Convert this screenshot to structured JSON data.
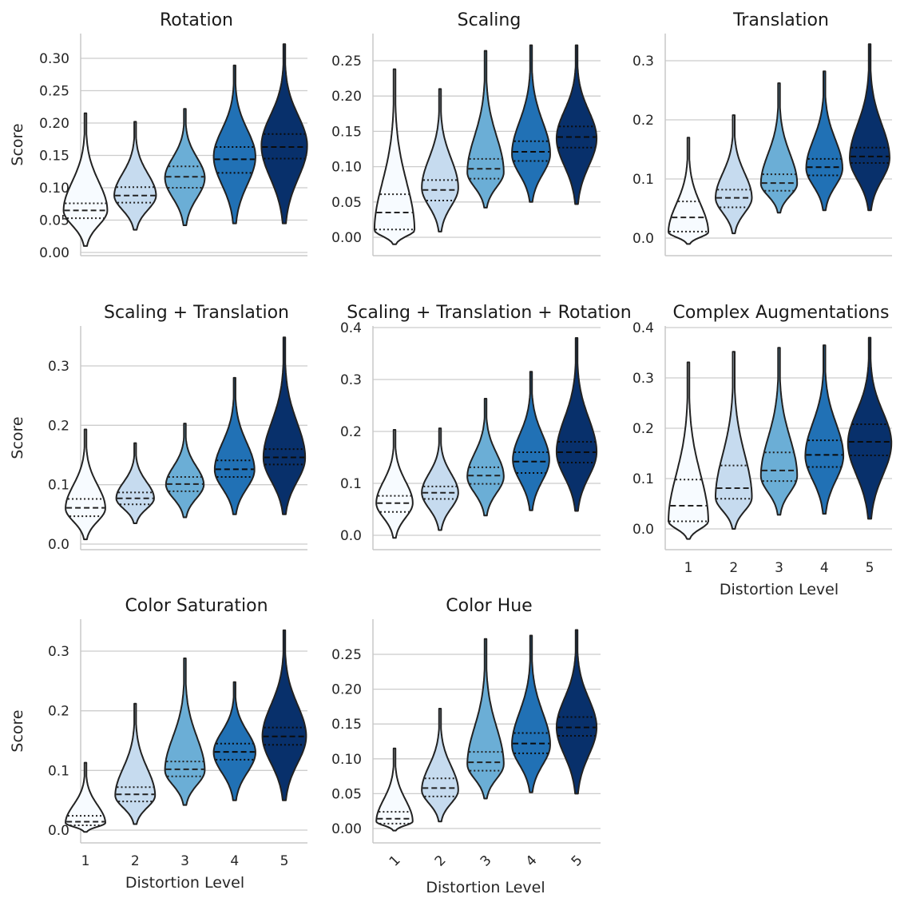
{
  "figure": {
    "palette": [
      "#f7fbff",
      "#c6dbef",
      "#6baed6",
      "#2171b5",
      "#08306b"
    ],
    "grid_color": "#cccccc",
    "outline_color": "#222222"
  },
  "chart_data": [
    {
      "type": "violin",
      "title": "Rotation",
      "ylabel": "Score",
      "xlabel": "",
      "categories": [
        "1",
        "2",
        "3",
        "4",
        "5"
      ],
      "show_xticks": false,
      "ylim": [
        0,
        0.33
      ],
      "yticks": [
        0.0,
        0.05,
        0.1,
        0.15,
        0.2,
        0.25,
        0.3
      ],
      "ytick_labels": [
        "0.00",
        "0.05",
        "0.10",
        "0.15",
        "0.20",
        "0.25",
        "0.30"
      ],
      "violins": [
        {
          "min": 0.01,
          "q1": 0.053,
          "median": 0.065,
          "q3": 0.076,
          "max": 0.215,
          "mode": 0.065,
          "maxw": 0.44
        },
        {
          "min": 0.035,
          "q1": 0.077,
          "median": 0.088,
          "q3": 0.101,
          "max": 0.202,
          "mode": 0.088,
          "maxw": 0.42
        },
        {
          "min": 0.042,
          "q1": 0.1,
          "median": 0.117,
          "q3": 0.133,
          "max": 0.222,
          "mode": 0.115,
          "maxw": 0.4
        },
        {
          "min": 0.045,
          "q1": 0.123,
          "median": 0.144,
          "q3": 0.163,
          "max": 0.289,
          "mode": 0.148,
          "maxw": 0.42
        },
        {
          "min": 0.045,
          "q1": 0.145,
          "median": 0.163,
          "q3": 0.183,
          "max": 0.322,
          "mode": 0.165,
          "maxw": 0.46
        }
      ]
    },
    {
      "type": "violin",
      "title": "Scaling",
      "ylabel": "",
      "xlabel": "",
      "categories": [
        "1",
        "2",
        "3",
        "4",
        "5"
      ],
      "show_xticks": false,
      "ylim": [
        0,
        0.275
      ],
      "yticks": [
        0.0,
        0.05,
        0.1,
        0.15,
        0.2,
        0.25
      ],
      "ytick_labels": [
        "0.00",
        "0.05",
        "0.10",
        "0.15",
        "0.20",
        "0.25"
      ],
      "violins": [
        {
          "min": -0.01,
          "q1": 0.011,
          "median": 0.035,
          "q3": 0.061,
          "max": 0.238,
          "mode": 0.01,
          "maxw": 0.44
        },
        {
          "min": 0.008,
          "q1": 0.052,
          "median": 0.067,
          "q3": 0.081,
          "max": 0.21,
          "mode": 0.07,
          "maxw": 0.4
        },
        {
          "min": 0.042,
          "q1": 0.083,
          "median": 0.097,
          "q3": 0.111,
          "max": 0.264,
          "mode": 0.092,
          "maxw": 0.4
        },
        {
          "min": 0.05,
          "q1": 0.108,
          "median": 0.121,
          "q3": 0.136,
          "max": 0.272,
          "mode": 0.118,
          "maxw": 0.42
        },
        {
          "min": 0.047,
          "q1": 0.127,
          "median": 0.142,
          "q3": 0.157,
          "max": 0.272,
          "mode": 0.14,
          "maxw": 0.44
        }
      ]
    },
    {
      "type": "violin",
      "title": "Translation",
      "ylabel": "",
      "xlabel": "",
      "categories": [
        "1",
        "2",
        "3",
        "4",
        "5"
      ],
      "show_xticks": false,
      "ylim": [
        0,
        0.33
      ],
      "yticks": [
        0.0,
        0.1,
        0.2,
        0.3
      ],
      "ytick_labels": [
        "0.0",
        "0.1",
        "0.2",
        "0.3"
      ],
      "violins": [
        {
          "min": -0.01,
          "q1": 0.011,
          "median": 0.035,
          "q3": 0.062,
          "max": 0.17,
          "mode": 0.01,
          "maxw": 0.44
        },
        {
          "min": 0.008,
          "q1": 0.052,
          "median": 0.068,
          "q3": 0.082,
          "max": 0.208,
          "mode": 0.068,
          "maxw": 0.4
        },
        {
          "min": 0.043,
          "q1": 0.08,
          "median": 0.093,
          "q3": 0.108,
          "max": 0.262,
          "mode": 0.092,
          "maxw": 0.4
        },
        {
          "min": 0.047,
          "q1": 0.106,
          "median": 0.12,
          "q3": 0.134,
          "max": 0.282,
          "mode": 0.118,
          "maxw": 0.4
        },
        {
          "min": 0.047,
          "q1": 0.127,
          "median": 0.138,
          "q3": 0.153,
          "max": 0.328,
          "mode": 0.135,
          "maxw": 0.44
        }
      ]
    },
    {
      "type": "violin",
      "title": "Scaling + Translation",
      "ylabel": "Score",
      "xlabel": "",
      "categories": [
        "1",
        "2",
        "3",
        "4",
        "5"
      ],
      "show_xticks": false,
      "ylim": [
        0,
        0.35
      ],
      "yticks": [
        0.0,
        0.1,
        0.2,
        0.3
      ],
      "ytick_labels": [
        "0.0",
        "0.1",
        "0.2",
        "0.3"
      ],
      "violins": [
        {
          "min": 0.008,
          "q1": 0.047,
          "median": 0.061,
          "q3": 0.076,
          "max": 0.193,
          "mode": 0.06,
          "maxw": 0.4
        },
        {
          "min": 0.035,
          "q1": 0.067,
          "median": 0.077,
          "q3": 0.087,
          "max": 0.17,
          "mode": 0.077,
          "maxw": 0.38
        },
        {
          "min": 0.045,
          "q1": 0.089,
          "median": 0.101,
          "q3": 0.113,
          "max": 0.203,
          "mode": 0.1,
          "maxw": 0.38
        },
        {
          "min": 0.05,
          "q1": 0.113,
          "median": 0.126,
          "q3": 0.141,
          "max": 0.28,
          "mode": 0.125,
          "maxw": 0.4
        },
        {
          "min": 0.05,
          "q1": 0.134,
          "median": 0.146,
          "q3": 0.16,
          "max": 0.348,
          "mode": 0.145,
          "maxw": 0.42
        }
      ]
    },
    {
      "type": "violin",
      "title": "Scaling + Translation + Rotation",
      "ylabel": "",
      "xlabel": "",
      "categories": [
        "1",
        "2",
        "3",
        "4",
        "5"
      ],
      "show_xticks": false,
      "ylim": [
        -0.015,
        0.4
      ],
      "yticks": [
        0.0,
        0.1,
        0.2,
        0.3,
        0.4
      ],
      "ytick_labels": [
        "0.0",
        "0.1",
        "0.2",
        "0.3",
        "0.4"
      ],
      "violins": [
        {
          "min": -0.005,
          "q1": 0.045,
          "median": 0.062,
          "q3": 0.076,
          "max": 0.203,
          "mode": 0.062,
          "maxw": 0.4
        },
        {
          "min": 0.01,
          "q1": 0.07,
          "median": 0.082,
          "q3": 0.094,
          "max": 0.206,
          "mode": 0.082,
          "maxw": 0.4
        },
        {
          "min": 0.038,
          "q1": 0.099,
          "median": 0.115,
          "q3": 0.131,
          "max": 0.263,
          "mode": 0.113,
          "maxw": 0.4
        },
        {
          "min": 0.048,
          "q1": 0.12,
          "median": 0.142,
          "q3": 0.16,
          "max": 0.315,
          "mode": 0.145,
          "maxw": 0.4
        },
        {
          "min": 0.047,
          "q1": 0.14,
          "median": 0.16,
          "q3": 0.18,
          "max": 0.38,
          "mode": 0.16,
          "maxw": 0.44
        }
      ]
    },
    {
      "type": "violin",
      "title": "Complex Augmentations",
      "ylabel": "",
      "xlabel": "Distortion Level",
      "categories": [
        "1",
        "2",
        "3",
        "4",
        "5"
      ],
      "show_xticks": true,
      "ylim": [
        -0.04,
        0.4
      ],
      "yticks": [
        0.0,
        0.1,
        0.2,
        0.3,
        0.4
      ],
      "ytick_labels": [
        "0.0",
        "0.1",
        "0.2",
        "0.3",
        "0.4"
      ],
      "violins": [
        {
          "min": -0.02,
          "q1": 0.015,
          "median": 0.046,
          "q3": 0.098,
          "max": 0.331,
          "mode": 0.015,
          "maxw": 0.44
        },
        {
          "min": 0.0,
          "q1": 0.06,
          "median": 0.081,
          "q3": 0.126,
          "max": 0.352,
          "mode": 0.062,
          "maxw": 0.4
        },
        {
          "min": 0.028,
          "q1": 0.095,
          "median": 0.116,
          "q3": 0.152,
          "max": 0.36,
          "mode": 0.105,
          "maxw": 0.4
        },
        {
          "min": 0.03,
          "q1": 0.123,
          "median": 0.147,
          "q3": 0.176,
          "max": 0.365,
          "mode": 0.145,
          "maxw": 0.42
        },
        {
          "min": 0.02,
          "q1": 0.146,
          "median": 0.173,
          "q3": 0.208,
          "max": 0.38,
          "mode": 0.17,
          "maxw": 0.48
        }
      ]
    },
    {
      "type": "violin",
      "title": "Color Saturation",
      "ylabel": "Score",
      "xlabel": "Distortion Level",
      "categories": [
        "1",
        "2",
        "3",
        "4",
        "5"
      ],
      "show_xticks": true,
      "xtick_rotation": 0,
      "ylim": [
        -0.02,
        0.335
      ],
      "yticks": [
        0.0,
        0.1,
        0.2,
        0.3
      ],
      "ytick_labels": [
        "0.0",
        "0.1",
        "0.2",
        "0.3"
      ],
      "violins": [
        {
          "min": -0.003,
          "q1": 0.008,
          "median": 0.014,
          "q3": 0.024,
          "max": 0.113,
          "mode": 0.012,
          "maxw": 0.4
        },
        {
          "min": 0.01,
          "q1": 0.048,
          "median": 0.06,
          "q3": 0.072,
          "max": 0.212,
          "mode": 0.058,
          "maxw": 0.4
        },
        {
          "min": 0.042,
          "q1": 0.09,
          "median": 0.102,
          "q3": 0.115,
          "max": 0.288,
          "mode": 0.1,
          "maxw": 0.4
        },
        {
          "min": 0.05,
          "q1": 0.118,
          "median": 0.131,
          "q3": 0.145,
          "max": 0.248,
          "mode": 0.13,
          "maxw": 0.42
        },
        {
          "min": 0.05,
          "q1": 0.143,
          "median": 0.157,
          "q3": 0.172,
          "max": 0.335,
          "mode": 0.157,
          "maxw": 0.44
        }
      ]
    },
    {
      "type": "violin",
      "title": "Color Hue",
      "ylabel": "",
      "xlabel": "Distortion Level",
      "categories": [
        "1",
        "2",
        "3",
        "4",
        "5"
      ],
      "show_xticks": true,
      "xtick_rotation": -45,
      "ylim": [
        -0.015,
        0.285
      ],
      "yticks": [
        0.0,
        0.05,
        0.1,
        0.15,
        0.2,
        0.25
      ],
      "ytick_labels": [
        "0.00",
        "0.05",
        "0.10",
        "0.15",
        "0.20",
        "0.25"
      ],
      "violins": [
        {
          "min": -0.003,
          "q1": 0.007,
          "median": 0.014,
          "q3": 0.024,
          "max": 0.115,
          "mode": 0.01,
          "maxw": 0.4
        },
        {
          "min": 0.01,
          "q1": 0.046,
          "median": 0.058,
          "q3": 0.072,
          "max": 0.172,
          "mode": 0.055,
          "maxw": 0.4
        },
        {
          "min": 0.043,
          "q1": 0.083,
          "median": 0.095,
          "q3": 0.11,
          "max": 0.272,
          "mode": 0.092,
          "maxw": 0.4
        },
        {
          "min": 0.052,
          "q1": 0.108,
          "median": 0.122,
          "q3": 0.137,
          "max": 0.277,
          "mode": 0.12,
          "maxw": 0.42
        },
        {
          "min": 0.05,
          "q1": 0.133,
          "median": 0.145,
          "q3": 0.16,
          "max": 0.285,
          "mode": 0.145,
          "maxw": 0.44
        }
      ]
    }
  ]
}
